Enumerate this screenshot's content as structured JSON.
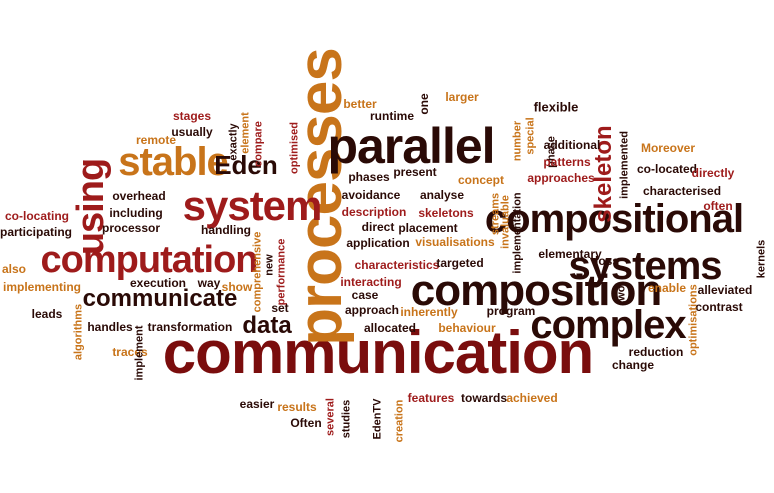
{
  "colors": {
    "dark": "#2a0a06",
    "maroon": "#7a0d0d",
    "red": "#9e1b1b",
    "orange": "#c8741a"
  },
  "words": [
    {
      "t": "communication",
      "s": 60,
      "c": "maroon"
    },
    {
      "t": "processes",
      "s": 62,
      "c": "orange",
      "r": -90
    },
    {
      "t": "parallel",
      "s": 50,
      "c": "dark"
    },
    {
      "t": "compositional",
      "s": 40,
      "c": "dark"
    },
    {
      "t": "composition",
      "s": 44,
      "c": "dark"
    },
    {
      "t": "systems",
      "s": 40,
      "c": "dark"
    },
    {
      "t": "complex",
      "s": 40,
      "c": "dark"
    },
    {
      "t": "computation",
      "s": 38,
      "c": "red"
    },
    {
      "t": "system",
      "s": 42,
      "c": "red"
    },
    {
      "t": "stable",
      "s": 40,
      "c": "orange"
    },
    {
      "t": "using",
      "s": 38,
      "c": "red",
      "r": -90
    },
    {
      "t": "Eden",
      "s": 26,
      "c": "dark"
    },
    {
      "t": "communicate",
      "s": 24,
      "c": "dark"
    },
    {
      "t": "data",
      "s": 24,
      "c": "dark"
    },
    {
      "t": "skeleton",
      "s": 24,
      "c": "red",
      "r": -90
    },
    {
      "t": "flexible",
      "s": 13,
      "c": "dark"
    },
    {
      "t": "better",
      "s": 12,
      "c": "orange"
    },
    {
      "t": "runtime",
      "s": 12,
      "c": "dark"
    },
    {
      "t": "one",
      "s": 12,
      "c": "dark",
      "r": -90
    },
    {
      "t": "larger",
      "s": 12,
      "c": "orange"
    },
    {
      "t": "stages",
      "s": 12,
      "c": "red"
    },
    {
      "t": "element",
      "s": 11,
      "c": "orange",
      "r": -90
    },
    {
      "t": "exactly",
      "s": 11,
      "c": "dark",
      "r": -90
    },
    {
      "t": "compare",
      "s": 11,
      "c": "red",
      "r": -90
    },
    {
      "t": "optimised",
      "s": 11,
      "c": "red",
      "r": -90
    },
    {
      "t": "remote",
      "s": 12,
      "c": "orange"
    },
    {
      "t": "usually",
      "s": 12,
      "c": "dark"
    },
    {
      "t": "number",
      "s": 11,
      "c": "orange",
      "r": -90
    },
    {
      "t": "special",
      "s": 11,
      "c": "orange",
      "r": -90
    },
    {
      "t": "phase",
      "s": 11,
      "c": "dark",
      "r": -90
    },
    {
      "t": "additional",
      "s": 12,
      "c": "dark"
    },
    {
      "t": "patterns",
      "s": 12,
      "c": "red"
    },
    {
      "t": "approaches",
      "s": 12,
      "c": "red"
    },
    {
      "t": "implemented",
      "s": 11,
      "c": "dark",
      "r": -90
    },
    {
      "t": "Moreover",
      "s": 12,
      "c": "orange"
    },
    {
      "t": "co-located",
      "s": 12,
      "c": "dark"
    },
    {
      "t": "directly",
      "s": 12,
      "c": "red"
    },
    {
      "t": "characterised",
      "s": 12,
      "c": "dark"
    },
    {
      "t": "often",
      "s": 12,
      "c": "red"
    },
    {
      "t": "phases",
      "s": 12,
      "c": "dark"
    },
    {
      "t": "present",
      "s": 12,
      "c": "dark"
    },
    {
      "t": "concept",
      "s": 12,
      "c": "orange"
    },
    {
      "t": "overhead",
      "s": 12,
      "c": "dark"
    },
    {
      "t": "co-locating",
      "s": 12,
      "c": "red"
    },
    {
      "t": "including",
      "s": 12,
      "c": "dark"
    },
    {
      "t": "processor",
      "s": 12,
      "c": "dark"
    },
    {
      "t": "participating",
      "s": 12,
      "c": "dark"
    },
    {
      "t": "handling",
      "s": 12,
      "c": "dark"
    },
    {
      "t": "new",
      "s": 11,
      "c": "dark",
      "r": -90
    },
    {
      "t": "comprehensive",
      "s": 11,
      "c": "orange",
      "r": -90
    },
    {
      "t": "performance",
      "s": 11,
      "c": "red",
      "r": -90
    },
    {
      "t": "avoidance",
      "s": 12,
      "c": "dark"
    },
    {
      "t": "analyse",
      "s": 12,
      "c": "dark"
    },
    {
      "t": "description",
      "s": 12,
      "c": "red"
    },
    {
      "t": "skeletons",
      "s": 12,
      "c": "red"
    },
    {
      "t": "streams",
      "s": 11,
      "c": "orange",
      "r": -90
    },
    {
      "t": "invaluable",
      "s": 11,
      "c": "orange",
      "r": -90
    },
    {
      "t": "implementation",
      "s": 11,
      "c": "dark",
      "r": -90
    },
    {
      "t": "direct",
      "s": 12,
      "c": "dark"
    },
    {
      "t": "placement",
      "s": 12,
      "c": "dark"
    },
    {
      "t": "application",
      "s": 12,
      "c": "dark"
    },
    {
      "t": "visualisations",
      "s": 12,
      "c": "orange"
    },
    {
      "t": "elementary",
      "s": 12,
      "c": "dark"
    },
    {
      "t": "loss",
      "s": 12,
      "c": "dark"
    },
    {
      "t": "kernels",
      "s": 11,
      "c": "dark",
      "r": -90
    },
    {
      "t": "also",
      "s": 12,
      "c": "orange"
    },
    {
      "t": "execution",
      "s": 12,
      "c": "dark"
    },
    {
      "t": "way",
      "s": 12,
      "c": "dark"
    },
    {
      "t": "characteristics",
      "s": 12,
      "c": "red"
    },
    {
      "t": "targeted",
      "s": 12,
      "c": "dark"
    },
    {
      "t": "show",
      "s": 12,
      "c": "orange"
    },
    {
      "t": "implementing",
      "s": 12,
      "c": "orange"
    },
    {
      "t": "interacting",
      "s": 12,
      "c": "red"
    },
    {
      "t": "case",
      "s": 12,
      "c": "dark"
    },
    {
      "t": "two",
      "s": 11,
      "c": "dark",
      "r": -90
    },
    {
      "t": "enable",
      "s": 12,
      "c": "orange"
    },
    {
      "t": "alleviated",
      "s": 12,
      "c": "dark"
    },
    {
      "t": "contrast",
      "s": 12,
      "c": "dark"
    },
    {
      "t": "set",
      "s": 12,
      "c": "dark"
    },
    {
      "t": "approach",
      "s": 12,
      "c": "dark"
    },
    {
      "t": "inherently",
      "s": 12,
      "c": "orange"
    },
    {
      "t": "program",
      "s": 12,
      "c": "dark"
    },
    {
      "t": "leads",
      "s": 12,
      "c": "dark"
    },
    {
      "t": "handles",
      "s": 12,
      "c": "dark"
    },
    {
      "t": "transformation",
      "s": 12,
      "c": "dark"
    },
    {
      "t": "allocated",
      "s": 12,
      "c": "dark"
    },
    {
      "t": "behaviour",
      "s": 12,
      "c": "orange"
    },
    {
      "t": "optimisations",
      "s": 11,
      "c": "orange",
      "r": -90
    },
    {
      "t": "algorithms",
      "s": 11,
      "c": "orange",
      "r": -90
    },
    {
      "t": "traces",
      "s": 12,
      "c": "orange"
    },
    {
      "t": "implement",
      "s": 11,
      "c": "dark",
      "r": -90
    },
    {
      "t": "reduction",
      "s": 12,
      "c": "dark"
    },
    {
      "t": "change",
      "s": 12,
      "c": "dark"
    },
    {
      "t": "easier",
      "s": 12,
      "c": "dark"
    },
    {
      "t": "results",
      "s": 12,
      "c": "orange"
    },
    {
      "t": "Often",
      "s": 12,
      "c": "dark"
    },
    {
      "t": "several",
      "s": 11,
      "c": "red",
      "r": -90
    },
    {
      "t": "studies",
      "s": 11,
      "c": "dark",
      "r": -90
    },
    {
      "t": "EdenTV",
      "s": 11,
      "c": "dark",
      "r": -90
    },
    {
      "t": "creation",
      "s": 11,
      "c": "orange",
      "r": -90
    },
    {
      "t": "features",
      "s": 12,
      "c": "red"
    },
    {
      "t": "towards",
      "s": 12,
      "c": "dark"
    },
    {
      "t": "achieved",
      "s": 12,
      "c": "orange"
    }
  ]
}
